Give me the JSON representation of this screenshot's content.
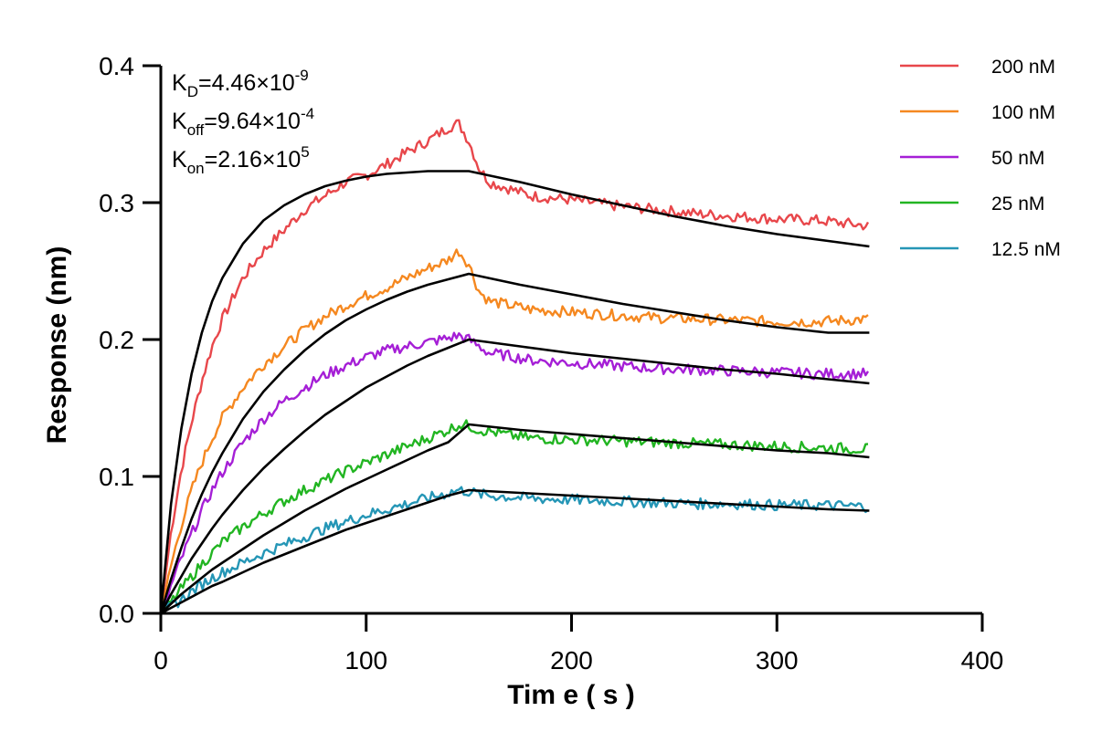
{
  "chart_data": {
    "type": "line",
    "title": "",
    "xlabel": "Tim e ( s )",
    "ylabel": "Response (nm)",
    "xlim": [
      0,
      400
    ],
    "ylim": [
      0,
      0.4
    ],
    "xticks": [
      0,
      100,
      200,
      300,
      400
    ],
    "yticks": [
      0.0,
      0.1,
      0.2,
      0.3,
      0.4
    ],
    "xtick_labels": [
      "0",
      "100",
      "200",
      "300",
      "400"
    ],
    "ytick_labels": [
      "0.0",
      "0.1",
      "0.2",
      "0.3",
      "0.4"
    ],
    "grid": false,
    "legend_position": "top-right",
    "association_end_s": 150,
    "end_s": 345,
    "annotations": [
      {
        "symbol": "K",
        "subscript": "D",
        "text": "=4.46×10",
        "exponent": "-9"
      },
      {
        "symbol": "K",
        "subscript": "off",
        "text": "=9.64×10",
        "exponent": "-4"
      },
      {
        "symbol": "K",
        "subscript": "on",
        "text": "=2.16×10",
        "exponent": "5"
      }
    ],
    "series": [
      {
        "name": "200 nM",
        "color": "#e8474b",
        "measured": {
          "x": [
            0,
            5,
            10,
            15,
            20,
            25,
            30,
            40,
            50,
            60,
            70,
            80,
            90,
            100,
            110,
            120,
            130,
            140,
            145,
            150,
            155,
            160,
            170,
            180,
            200,
            220,
            240,
            260,
            280,
            300,
            320,
            345
          ],
          "y": [
            0,
            0.06,
            0.105,
            0.14,
            0.17,
            0.195,
            0.215,
            0.245,
            0.265,
            0.28,
            0.295,
            0.305,
            0.315,
            0.32,
            0.328,
            0.337,
            0.345,
            0.355,
            0.358,
            0.345,
            0.325,
            0.315,
            0.31,
            0.305,
            0.302,
            0.298,
            0.295,
            0.292,
            0.29,
            0.288,
            0.287,
            0.283
          ]
        },
        "fit": {
          "x": [
            0,
            5,
            10,
            15,
            20,
            25,
            30,
            40,
            50,
            60,
            70,
            80,
            90,
            100,
            110,
            120,
            130,
            140,
            150,
            175,
            200,
            225,
            250,
            275,
            300,
            325,
            345
          ],
          "y": [
            0,
            0.08,
            0.135,
            0.175,
            0.205,
            0.228,
            0.245,
            0.27,
            0.287,
            0.298,
            0.306,
            0.312,
            0.316,
            0.319,
            0.321,
            0.322,
            0.323,
            0.323,
            0.323,
            0.315,
            0.306,
            0.298,
            0.29,
            0.283,
            0.277,
            0.272,
            0.268
          ]
        }
      },
      {
        "name": "100 nM",
        "color": "#f58820",
        "measured": {
          "x": [
            0,
            5,
            10,
            15,
            20,
            25,
            30,
            40,
            50,
            60,
            70,
            80,
            90,
            100,
            110,
            120,
            130,
            140,
            145,
            150,
            155,
            160,
            170,
            180,
            200,
            220,
            240,
            260,
            280,
            300,
            320,
            345
          ],
          "y": [
            0,
            0.035,
            0.065,
            0.09,
            0.11,
            0.128,
            0.143,
            0.165,
            0.182,
            0.195,
            0.207,
            0.217,
            0.225,
            0.232,
            0.238,
            0.245,
            0.252,
            0.258,
            0.265,
            0.255,
            0.235,
            0.228,
            0.225,
            0.222,
            0.22,
            0.218,
            0.216,
            0.215,
            0.214,
            0.213,
            0.213,
            0.215
          ]
        },
        "fit": {
          "x": [
            0,
            5,
            10,
            15,
            20,
            25,
            30,
            40,
            50,
            60,
            70,
            80,
            90,
            100,
            110,
            120,
            130,
            140,
            150,
            175,
            200,
            225,
            250,
            275,
            300,
            325,
            345
          ],
          "y": [
            0,
            0.025,
            0.048,
            0.069,
            0.087,
            0.103,
            0.117,
            0.142,
            0.162,
            0.178,
            0.192,
            0.204,
            0.214,
            0.222,
            0.229,
            0.235,
            0.24,
            0.244,
            0.248,
            0.24,
            0.233,
            0.226,
            0.22,
            0.214,
            0.209,
            0.205,
            0.205
          ]
        }
      },
      {
        "name": "50 nM",
        "color": "#a51fd6",
        "measured": {
          "x": [
            0,
            5,
            10,
            15,
            20,
            25,
            30,
            40,
            50,
            60,
            70,
            80,
            90,
            100,
            110,
            120,
            130,
            140,
            145,
            150,
            155,
            160,
            170,
            180,
            200,
            220,
            240,
            260,
            280,
            300,
            320,
            345
          ],
          "y": [
            0,
            0.02,
            0.04,
            0.058,
            0.075,
            0.09,
            0.103,
            0.125,
            0.142,
            0.155,
            0.165,
            0.174,
            0.181,
            0.187,
            0.192,
            0.195,
            0.198,
            0.201,
            0.203,
            0.2,
            0.195,
            0.19,
            0.188,
            0.185,
            0.183,
            0.181,
            0.179,
            0.178,
            0.177,
            0.176,
            0.175,
            0.175
          ]
        },
        "fit": {
          "x": [
            0,
            5,
            10,
            15,
            20,
            25,
            30,
            40,
            50,
            60,
            70,
            80,
            90,
            100,
            110,
            120,
            130,
            140,
            150,
            175,
            200,
            225,
            250,
            275,
            300,
            325,
            345
          ],
          "y": [
            0,
            0.014,
            0.027,
            0.04,
            0.051,
            0.062,
            0.072,
            0.09,
            0.106,
            0.12,
            0.133,
            0.145,
            0.155,
            0.165,
            0.173,
            0.181,
            0.188,
            0.194,
            0.2,
            0.195,
            0.19,
            0.186,
            0.182,
            0.178,
            0.175,
            0.171,
            0.168
          ]
        }
      },
      {
        "name": "25 nM",
        "color": "#22b522",
        "measured": {
          "x": [
            0,
            5,
            10,
            15,
            20,
            25,
            30,
            40,
            50,
            60,
            70,
            80,
            90,
            100,
            110,
            120,
            130,
            140,
            145,
            150,
            155,
            160,
            170,
            180,
            200,
            220,
            240,
            260,
            280,
            300,
            320,
            345
          ],
          "y": [
            0,
            0.008,
            0.018,
            0.027,
            0.036,
            0.044,
            0.052,
            0.063,
            0.073,
            0.082,
            0.09,
            0.097,
            0.104,
            0.11,
            0.116,
            0.122,
            0.128,
            0.134,
            0.138,
            0.137,
            0.134,
            0.133,
            0.13,
            0.128,
            0.127,
            0.126,
            0.125,
            0.124,
            0.123,
            0.122,
            0.121,
            0.12
          ]
        },
        "fit": {
          "x": [
            0,
            5,
            10,
            15,
            20,
            25,
            30,
            40,
            50,
            60,
            70,
            80,
            90,
            100,
            110,
            120,
            130,
            140,
            150,
            175,
            200,
            225,
            250,
            275,
            300,
            325,
            345
          ],
          "y": [
            0,
            0.007,
            0.014,
            0.02,
            0.026,
            0.032,
            0.037,
            0.047,
            0.057,
            0.066,
            0.075,
            0.083,
            0.091,
            0.098,
            0.105,
            0.112,
            0.119,
            0.125,
            0.138,
            0.134,
            0.131,
            0.128,
            0.125,
            0.122,
            0.119,
            0.117,
            0.114
          ]
        }
      },
      {
        "name": "12.5 nM",
        "color": "#2596b6",
        "measured": {
          "x": [
            0,
            5,
            10,
            15,
            20,
            25,
            30,
            40,
            50,
            60,
            70,
            80,
            90,
            100,
            110,
            120,
            130,
            140,
            145,
            150,
            155,
            160,
            170,
            180,
            200,
            220,
            240,
            260,
            280,
            300,
            320,
            345
          ],
          "y": [
            0,
            0.005,
            0.01,
            0.016,
            0.021,
            0.026,
            0.03,
            0.037,
            0.044,
            0.05,
            0.056,
            0.062,
            0.067,
            0.072,
            0.076,
            0.08,
            0.084,
            0.088,
            0.09,
            0.089,
            0.087,
            0.086,
            0.085,
            0.084,
            0.083,
            0.082,
            0.081,
            0.08,
            0.08,
            0.079,
            0.079,
            0.078
          ]
        },
        "fit": {
          "x": [
            0,
            5,
            10,
            15,
            20,
            25,
            30,
            40,
            50,
            60,
            70,
            80,
            90,
            100,
            110,
            120,
            130,
            140,
            150,
            175,
            200,
            225,
            250,
            275,
            300,
            325,
            345
          ],
          "y": [
            0,
            0.004,
            0.008,
            0.012,
            0.016,
            0.02,
            0.023,
            0.03,
            0.037,
            0.043,
            0.049,
            0.055,
            0.061,
            0.066,
            0.071,
            0.076,
            0.081,
            0.086,
            0.09,
            0.088,
            0.086,
            0.084,
            0.082,
            0.08,
            0.078,
            0.076,
            0.075
          ]
        }
      }
    ]
  }
}
